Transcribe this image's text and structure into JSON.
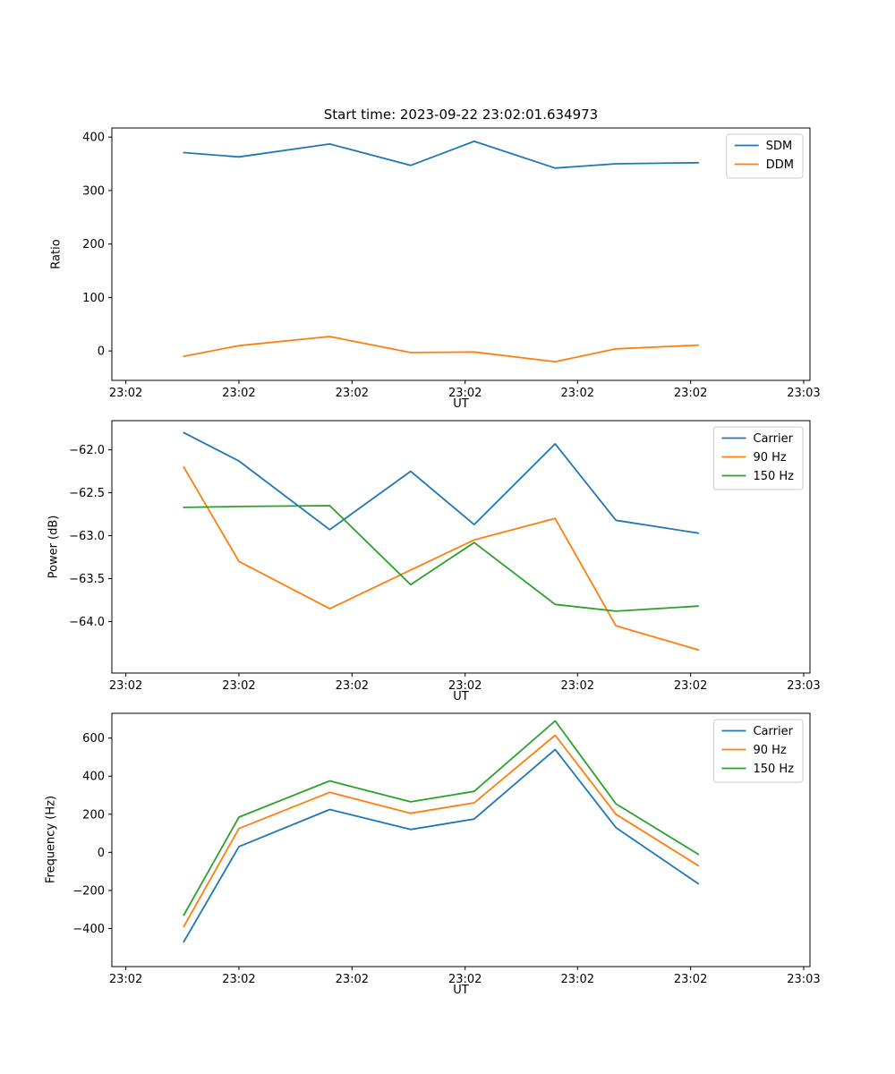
{
  "figure": {
    "title": "Start time: 2023-09-22 23:02:01.634973",
    "background": "#ffffff"
  },
  "colors": {
    "blue": "#1f77b4",
    "orange": "#ff7f0e",
    "green": "#2ca02c",
    "legend_border": "#cccccc",
    "axis": "#000000"
  },
  "chart_data": [
    {
      "type": "line",
      "title": "Start time: 2023-09-22 23:02:01.634973",
      "xlabel": "UT",
      "ylabel": "Ratio",
      "ylim": [
        -55,
        417
      ],
      "grid": false,
      "legend_position": "upper right",
      "xticks": [
        {
          "pos": 0.02,
          "label": "23:02"
        },
        {
          "pos": 0.182,
          "label": "23:02"
        },
        {
          "pos": 0.344,
          "label": "23:02"
        },
        {
          "pos": 0.506,
          "label": "23:02"
        },
        {
          "pos": 0.667,
          "label": "23:02"
        },
        {
          "pos": 0.829,
          "label": "23:02"
        },
        {
          "pos": 0.991,
          "label": "23:03"
        }
      ],
      "yticks": [
        {
          "value": 0,
          "label": "0"
        },
        {
          "value": 100,
          "label": "100"
        },
        {
          "value": 200,
          "label": "200"
        },
        {
          "value": 300,
          "label": "300"
        },
        {
          "value": 400,
          "label": "400"
        }
      ],
      "x": [
        0.103,
        0.182,
        0.312,
        0.428,
        0.519,
        0.635,
        0.722,
        0.84
      ],
      "series": [
        {
          "name": "SDM",
          "color": "#1f77b4",
          "values": [
            371,
            363,
            387,
            347,
            392,
            342,
            350,
            352
          ]
        },
        {
          "name": "DDM",
          "color": "#ff7f0e",
          "values": [
            -10,
            10,
            27,
            -3,
            -2,
            -20,
            4,
            11
          ]
        }
      ]
    },
    {
      "type": "line",
      "title": "",
      "xlabel": "UT",
      "ylabel": "Power (dB)",
      "ylim": [
        -64.6,
        -61.66
      ],
      "grid": false,
      "legend_position": "upper right",
      "xticks": [
        {
          "pos": 0.02,
          "label": "23:02"
        },
        {
          "pos": 0.182,
          "label": "23:02"
        },
        {
          "pos": 0.344,
          "label": "23:02"
        },
        {
          "pos": 0.506,
          "label": "23:02"
        },
        {
          "pos": 0.667,
          "label": "23:02"
        },
        {
          "pos": 0.829,
          "label": "23:02"
        },
        {
          "pos": 0.991,
          "label": "23:03"
        }
      ],
      "yticks": [
        {
          "value": -62.0,
          "label": "−62.0"
        },
        {
          "value": -62.5,
          "label": "−62.5"
        },
        {
          "value": -63.0,
          "label": "−63.0"
        },
        {
          "value": -63.5,
          "label": "−63.5"
        },
        {
          "value": -64.0,
          "label": "−64.0"
        }
      ],
      "x": [
        0.103,
        0.182,
        0.312,
        0.428,
        0.519,
        0.635,
        0.722,
        0.84
      ],
      "series": [
        {
          "name": "Carrier",
          "color": "#1f77b4",
          "values": [
            -61.8,
            -62.13,
            -62.93,
            -62.25,
            -62.87,
            -61.93,
            -62.82,
            -62.97
          ]
        },
        {
          "name": "90 Hz",
          "color": "#ff7f0e",
          "values": [
            -62.2,
            -63.3,
            -63.85,
            -63.4,
            -63.05,
            -62.8,
            -64.05,
            -64.33
          ]
        },
        {
          "name": "150 Hz",
          "color": "#2ca02c",
          "values": [
            -62.67,
            -62.66,
            -62.65,
            -63.57,
            -63.08,
            -63.8,
            -63.88,
            -63.82
          ]
        }
      ]
    },
    {
      "type": "line",
      "title": "",
      "xlabel": "UT",
      "ylabel": "Frequency (Hz)",
      "ylim": [
        -600,
        730
      ],
      "grid": false,
      "legend_position": "upper right",
      "xticks": [
        {
          "pos": 0.02,
          "label": "23:02"
        },
        {
          "pos": 0.182,
          "label": "23:02"
        },
        {
          "pos": 0.344,
          "label": "23:02"
        },
        {
          "pos": 0.506,
          "label": "23:02"
        },
        {
          "pos": 0.667,
          "label": "23:02"
        },
        {
          "pos": 0.829,
          "label": "23:02"
        },
        {
          "pos": 0.991,
          "label": "23:03"
        }
      ],
      "yticks": [
        {
          "value": -400,
          "label": "−400"
        },
        {
          "value": -200,
          "label": "−200"
        },
        {
          "value": 0,
          "label": "0"
        },
        {
          "value": 200,
          "label": "200"
        },
        {
          "value": 400,
          "label": "400"
        },
        {
          "value": 600,
          "label": "600"
        }
      ],
      "x": [
        0.103,
        0.182,
        0.312,
        0.428,
        0.519,
        0.635,
        0.722,
        0.84
      ],
      "series": [
        {
          "name": "Carrier",
          "color": "#1f77b4",
          "values": [
            -470,
            30,
            225,
            120,
            175,
            540,
            130,
            -165
          ]
        },
        {
          "name": "90 Hz",
          "color": "#ff7f0e",
          "values": [
            -390,
            125,
            315,
            205,
            260,
            615,
            200,
            -70
          ]
        },
        {
          "name": "150 Hz",
          "color": "#2ca02c",
          "values": [
            -330,
            185,
            375,
            265,
            320,
            690,
            255,
            -10
          ]
        }
      ]
    }
  ]
}
